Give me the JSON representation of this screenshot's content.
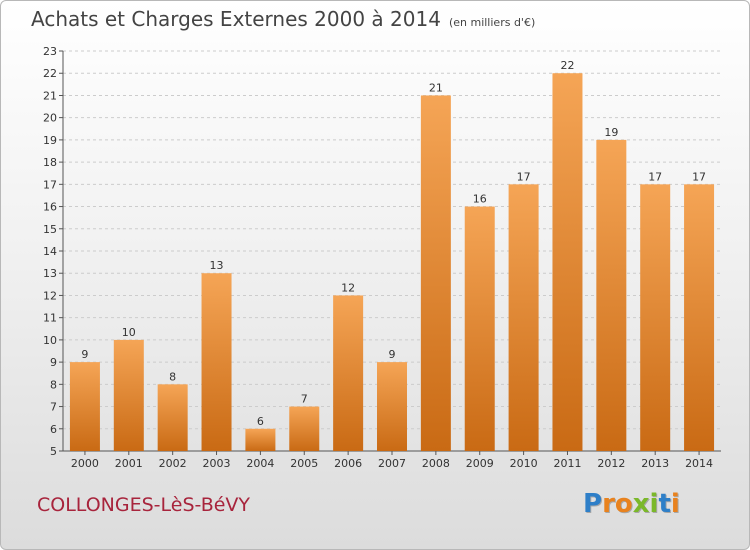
{
  "title": "Achats et Charges Externes 2000 à 2014",
  "subtitle": "(en milliers d'€)",
  "commune": "COLLONGES-LèS-BéVY",
  "logo": {
    "text": "Proxiti",
    "letter_colors": [
      "#2e7fc8",
      "#e8821e",
      "#e8821e",
      "#7bb82a",
      "#7bb82a",
      "#2e7fc8",
      "#e8821e"
    ]
  },
  "colors": {
    "bar_top": "#f5a556",
    "bar_bottom": "#c96a14",
    "grid": "#cccccc",
    "title": "#444444",
    "commune": "#a8243c"
  },
  "chart_data": {
    "type": "bar",
    "categories": [
      "2000",
      "2001",
      "2002",
      "2003",
      "2004",
      "2005",
      "2006",
      "2007",
      "2008",
      "2009",
      "2010",
      "2011",
      "2012",
      "2013",
      "2014"
    ],
    "values": [
      9,
      10,
      8,
      13,
      6,
      7,
      12,
      9,
      21,
      16,
      17,
      22,
      19,
      17,
      17
    ],
    "title": "Achats et Charges Externes 2000 à 2014",
    "ylim": [
      5,
      23
    ],
    "yticks": [
      5,
      6,
      7,
      8,
      9,
      10,
      11,
      12,
      13,
      14,
      15,
      16,
      17,
      18,
      19,
      20,
      21,
      22,
      23
    ],
    "grid": true,
    "data_labels": true
  }
}
